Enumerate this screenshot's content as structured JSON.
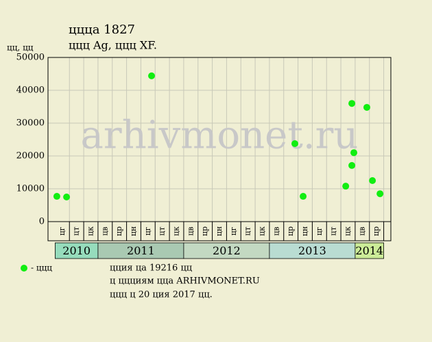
{
  "chart_data": {
    "type": "scatter",
    "title": "ццца 1827",
    "subtitle": "ццц Ag, ццц XF.",
    "y_label": "цц, цц",
    "watermark": "arhivmonet.ru",
    "groups": [
      {
        "name": "2010",
        "color": "#96dcbc",
        "categories": [
          "цг",
          "цт",
          "цк"
        ]
      },
      {
        "name": "2011",
        "color": "#a9c9b2",
        "categories": [
          "цв",
          "цр",
          "цн",
          "цг",
          "цт",
          "цк"
        ]
      },
      {
        "name": "2012",
        "color": "#c3d9c2",
        "categories": [
          "цв",
          "цр",
          "цн",
          "цг",
          "цт",
          "цк"
        ]
      },
      {
        "name": "2013",
        "color": "#b9dcd2",
        "categories": [
          "цв",
          "цр",
          "цн",
          "цг",
          "цт",
          "цк"
        ]
      },
      {
        "name": "2014",
        "color": "#ccec98",
        "categories": [
          "цв",
          "цр"
        ]
      }
    ],
    "series": [
      {
        "name": "- ццц",
        "color": "#11ee11",
        "x": [
          -0.38,
          0.3,
          6.25,
          16.28,
          16.86,
          19.84,
          20.27,
          20.41,
          20.27,
          21.32,
          21.71,
          22.24
        ],
        "values": [
          7700,
          7500,
          44400,
          23750,
          7700,
          10800,
          36000,
          21000,
          17100,
          34800,
          12500,
          8500
        ]
      }
    ],
    "xlim": [
      -1,
      23
    ],
    "ylim": [
      0,
      50000
    ],
    "yticks": [
      0,
      10000,
      20000,
      30000,
      40000,
      50000
    ],
    "grid": true,
    "notes": [
      "цция ца 19216 цц",
      "ц ццциям цца ARHIVMONET.RU",
      "ццц ц 20 ция 2017 цц."
    ]
  }
}
